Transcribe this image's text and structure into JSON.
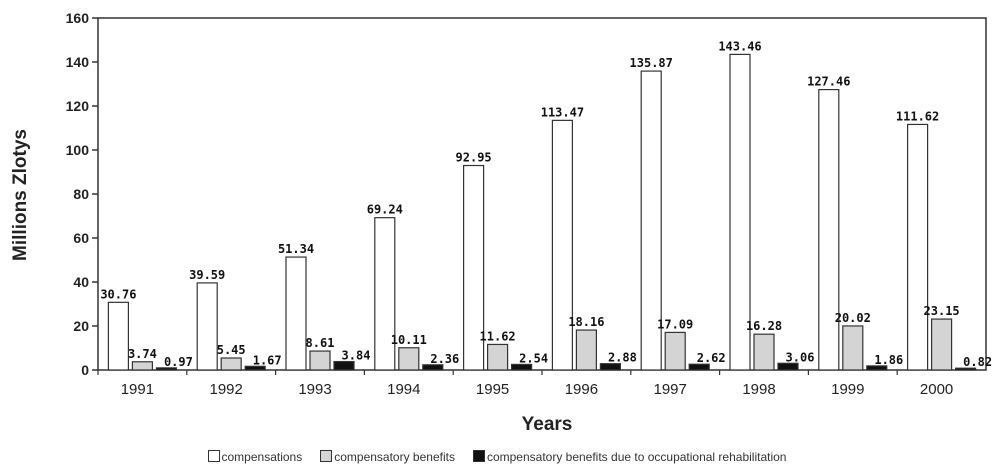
{
  "chart_data": {
    "type": "bar",
    "categories": [
      "1991",
      "1992",
      "1993",
      "1994",
      "1995",
      "1996",
      "1997",
      "1998",
      "1999",
      "2000"
    ],
    "series": [
      {
        "name": "compensations",
        "color": "#ffffff",
        "values": [
          30.76,
          39.59,
          51.34,
          69.24,
          92.95,
          113.47,
          135.87,
          143.46,
          127.46,
          111.62
        ],
        "labels": [
          "30.76",
          "39.59",
          "51.34",
          "69.24",
          "92.95",
          "113.47",
          "135.87",
          "143.46",
          "127.46",
          "111.62"
        ]
      },
      {
        "name": "compensatory benefits",
        "color": "#d4d4d4",
        "values": [
          3.74,
          5.45,
          8.61,
          10.11,
          11.62,
          18.16,
          17.09,
          16.28,
          20.02,
          23.15
        ],
        "labels": [
          "3.74",
          "5.45",
          "8.61",
          "10.11",
          "11.62",
          "18.16",
          "17.09",
          "16.28",
          "20.02",
          "23.15"
        ]
      },
      {
        "name": "compensatory benefits due to occupational rehabilitation",
        "color": "#111111",
        "values": [
          0.97,
          1.67,
          3.84,
          2.36,
          2.54,
          2.88,
          2.62,
          3.06,
          1.86,
          0.82
        ],
        "labels": [
          "0.97",
          "1.67",
          "3.84",
          "2.36",
          "2.54",
          "2.88",
          "2.62",
          "3.06",
          "1.86",
          "0.82"
        ]
      }
    ],
    "xlabel": "Years",
    "ylabel": "Millions Zlotys",
    "ylim": [
      0,
      160
    ],
    "yticks": [
      "0",
      "20",
      "40",
      "60",
      "80",
      "100",
      "120",
      "140",
      "160"
    ],
    "grid": false,
    "legend_position": "bottom"
  }
}
